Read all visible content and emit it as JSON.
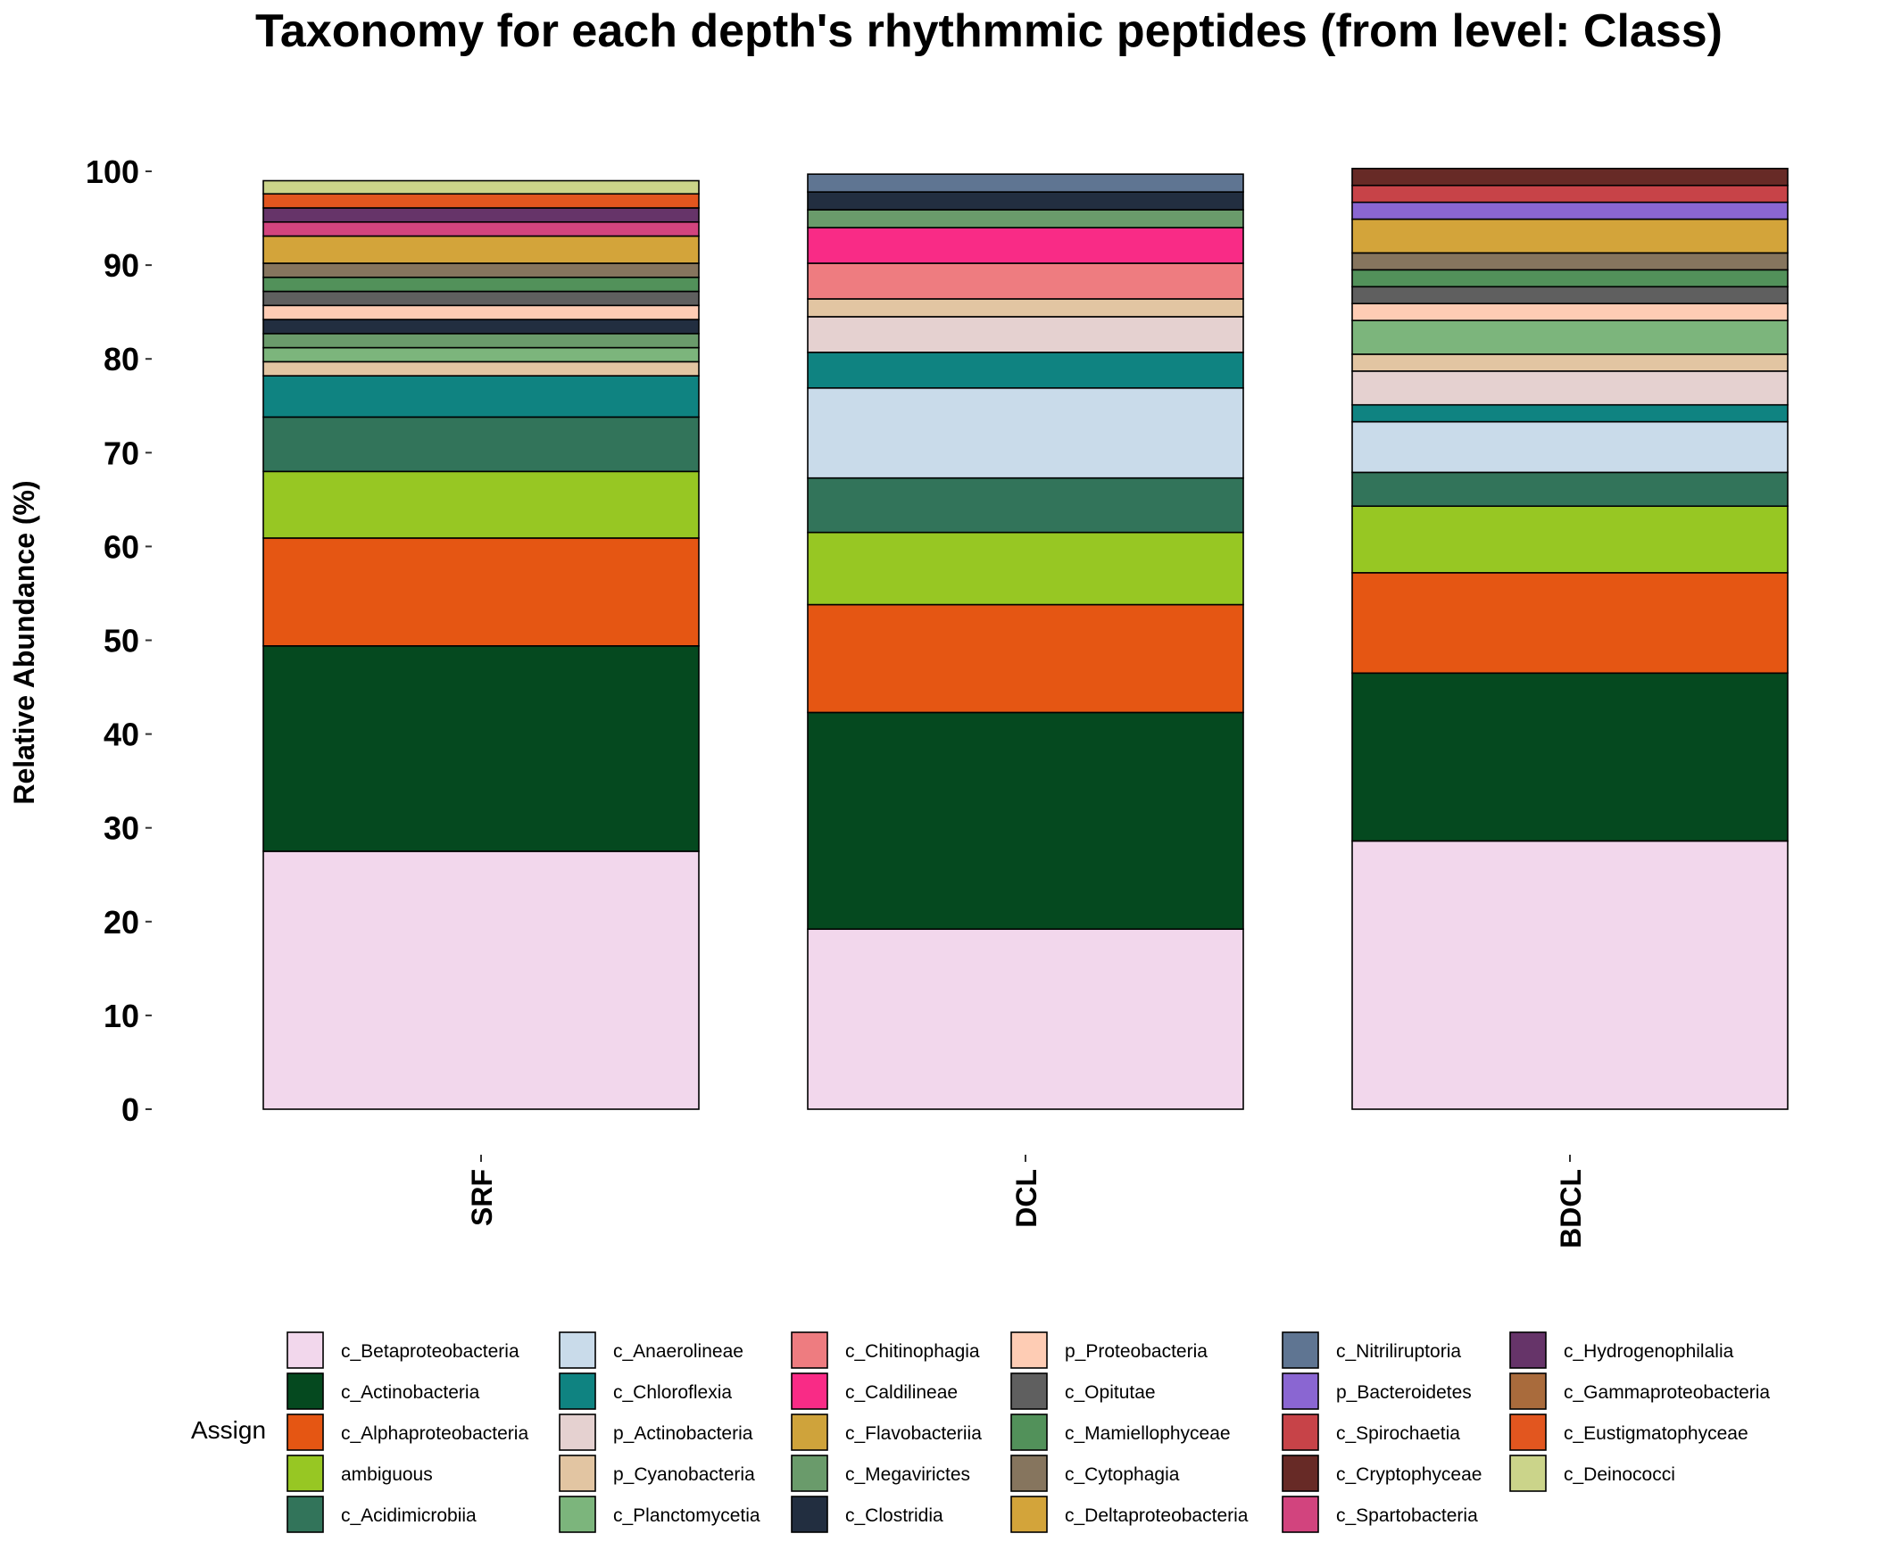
{
  "chart_data": {
    "type": "bar",
    "stacked": true,
    "title": "Taxonomy for each depth's rhythmmic peptides (from level: Class)",
    "xlabel": "",
    "ylabel": "Relative Abundance (%)",
    "ylim": [
      0,
      100
    ],
    "yticks": [
      0,
      10,
      20,
      30,
      40,
      50,
      60,
      70,
      80,
      90,
      100
    ],
    "categories": [
      "SRF",
      "DCL",
      "BDCL"
    ],
    "legend_title": "Assign",
    "legend_position": "bottom",
    "grid": false,
    "series": [
      {
        "name": "c_Betaproteobacteria",
        "color": "#F2D7EC",
        "values": [
          27.5,
          19.2,
          28.6
        ]
      },
      {
        "name": "c_Actinobacteria",
        "color": "#05491F",
        "values": [
          21.9,
          23.1,
          17.9
        ]
      },
      {
        "name": "c_Alphaproteobacteria",
        "color": "#E55613",
        "values": [
          11.5,
          11.5,
          10.7
        ]
      },
      {
        "name": "ambiguous",
        "color": "#97C723",
        "values": [
          7.1,
          7.7,
          7.1
        ]
      },
      {
        "name": "c_Acidimicrobiia",
        "color": "#32745A",
        "values": [
          5.8,
          5.8,
          3.6
        ]
      },
      {
        "name": "c_Anaerolineae",
        "color": "#C9DBEA",
        "values": [
          0,
          9.6,
          5.4
        ]
      },
      {
        "name": "c_Chloroflexia",
        "color": "#0F8381",
        "values": [
          4.4,
          3.8,
          1.8
        ]
      },
      {
        "name": "p_Actinobacteria",
        "color": "#E5D1D0",
        "values": [
          0,
          3.8,
          3.6
        ]
      },
      {
        "name": "p_Cyanobacteria",
        "color": "#E2C5A2",
        "values": [
          1.5,
          1.9,
          1.8
        ]
      },
      {
        "name": "c_Planctomycetia",
        "color": "#7CB57C",
        "values": [
          1.5,
          0,
          3.6
        ]
      },
      {
        "name": "c_Chitinophagia",
        "color": "#EE7C80",
        "values": [
          0,
          3.8,
          0
        ]
      },
      {
        "name": "c_Caldilineae",
        "color": "#F92B86",
        "values": [
          0,
          3.8,
          0
        ]
      },
      {
        "name": "c_Flavobacteriia",
        "color": "#CFA33B",
        "values": [
          0,
          0,
          0
        ]
      },
      {
        "name": "c_Megavirictes",
        "color": "#6A9B6B",
        "values": [
          1.5,
          1.9,
          0
        ]
      },
      {
        "name": "c_Clostridia",
        "color": "#222E40",
        "values": [
          1.5,
          1.9,
          0
        ]
      },
      {
        "name": "p_Proteobacteria",
        "color": "#FECCB4",
        "values": [
          1.5,
          0,
          1.8
        ]
      },
      {
        "name": "c_Opitutae",
        "color": "#5F5F5F",
        "values": [
          1.5,
          0,
          1.8
        ]
      },
      {
        "name": "c_Mamiellophyceae",
        "color": "#52915A",
        "values": [
          1.5,
          0,
          1.8
        ]
      },
      {
        "name": "c_Cytophagia",
        "color": "#86755E",
        "values": [
          1.5,
          0,
          1.8
        ]
      },
      {
        "name": "c_Deltaproteobacteria",
        "color": "#D3A43A",
        "values": [
          2.9,
          0,
          3.6
        ]
      },
      {
        "name": "c_Nitriliruptoria",
        "color": "#5F7592",
        "values": [
          0,
          1.9,
          0
        ]
      },
      {
        "name": "p_Bacteroidetes",
        "color": "#8A66D2",
        "values": [
          0,
          0,
          1.8
        ]
      },
      {
        "name": "c_Spirochaetia",
        "color": "#C74348",
        "values": [
          0,
          0,
          1.8
        ]
      },
      {
        "name": "c_Cryptophyceae",
        "color": "#672A26",
        "values": [
          0,
          0,
          1.8
        ]
      },
      {
        "name": "c_Spartobacteria",
        "color": "#D2447E",
        "values": [
          1.5,
          0,
          0
        ]
      },
      {
        "name": "c_Hydrogenophilalia",
        "color": "#663469",
        "values": [
          1.5,
          0,
          0
        ]
      },
      {
        "name": "c_Gammaproteobacteria",
        "color": "#A96B3C",
        "values": [
          0,
          0,
          0
        ]
      },
      {
        "name": "c_Eustigmatophyceae",
        "color": "#E2561F",
        "values": [
          1.5,
          0,
          0
        ]
      },
      {
        "name": "c_Deinococci",
        "color": "#CBD48A",
        "values": [
          1.4,
          0,
          0
        ]
      }
    ]
  }
}
